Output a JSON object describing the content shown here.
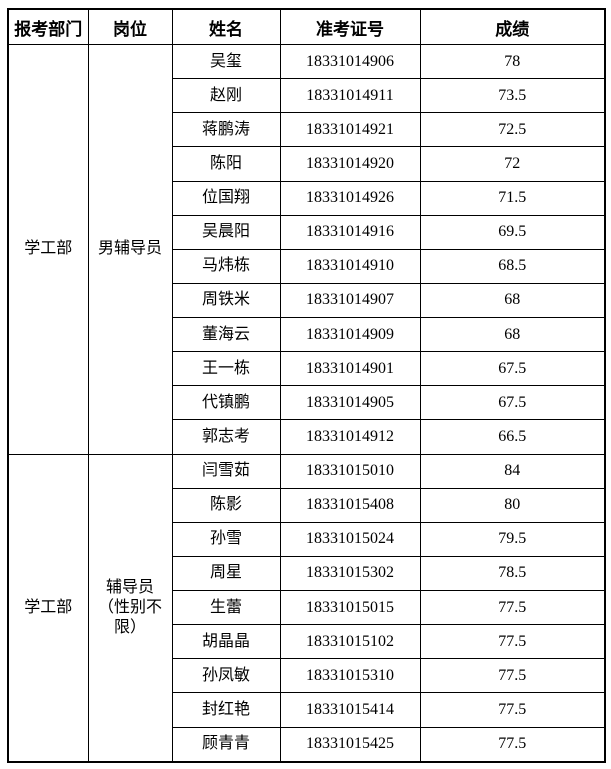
{
  "table": {
    "headers": [
      "报考部门",
      "岗位",
      "姓名",
      "准考证号",
      "成绩"
    ],
    "groups": [
      {
        "department": "学工部",
        "position_lines": [
          "男辅导员"
        ],
        "rows": [
          {
            "name": "吴玺",
            "ticket": "18331014906",
            "score": "78"
          },
          {
            "name": "赵刚",
            "ticket": "18331014911",
            "score": "73.5"
          },
          {
            "name": "蒋鹏涛",
            "ticket": "18331014921",
            "score": "72.5"
          },
          {
            "name": "陈阳",
            "ticket": "18331014920",
            "score": "72"
          },
          {
            "name": "位国翔",
            "ticket": "18331014926",
            "score": "71.5"
          },
          {
            "name": "吴晨阳",
            "ticket": "18331014916",
            "score": "69.5"
          },
          {
            "name": "马炜栋",
            "ticket": "18331014910",
            "score": "68.5"
          },
          {
            "name": "周铁米",
            "ticket": "18331014907",
            "score": "68"
          },
          {
            "name": "董海云",
            "ticket": "18331014909",
            "score": "68"
          },
          {
            "name": "王一栋",
            "ticket": "18331014901",
            "score": "67.5"
          },
          {
            "name": "代镇鹏",
            "ticket": "18331014905",
            "score": "67.5"
          },
          {
            "name": "郭志考",
            "ticket": "18331014912",
            "score": "66.5"
          }
        ]
      },
      {
        "department": "学工部",
        "position_lines": [
          "辅导员",
          "（性别不限）"
        ],
        "rows": [
          {
            "name": "闫雪茹",
            "ticket": "18331015010",
            "score": "84"
          },
          {
            "name": "陈影",
            "ticket": "18331015408",
            "score": "80"
          },
          {
            "name": "孙雪",
            "ticket": "18331015024",
            "score": "79.5"
          },
          {
            "name": "周星",
            "ticket": "18331015302",
            "score": "78.5"
          },
          {
            "name": "生蕾",
            "ticket": "18331015015",
            "score": "77.5"
          },
          {
            "name": "胡晶晶",
            "ticket": "18331015102",
            "score": "77.5"
          },
          {
            "name": "孙凤敏",
            "ticket": "18331015310",
            "score": "77.5"
          },
          {
            "name": "封红艳",
            "ticket": "18331015414",
            "score": "77.5"
          },
          {
            "name": "顾青青",
            "ticket": "18331015425",
            "score": "77.5"
          }
        ]
      }
    ]
  },
  "colors": {
    "border": "#000000",
    "text": "#000000",
    "background": "#ffffff"
  }
}
